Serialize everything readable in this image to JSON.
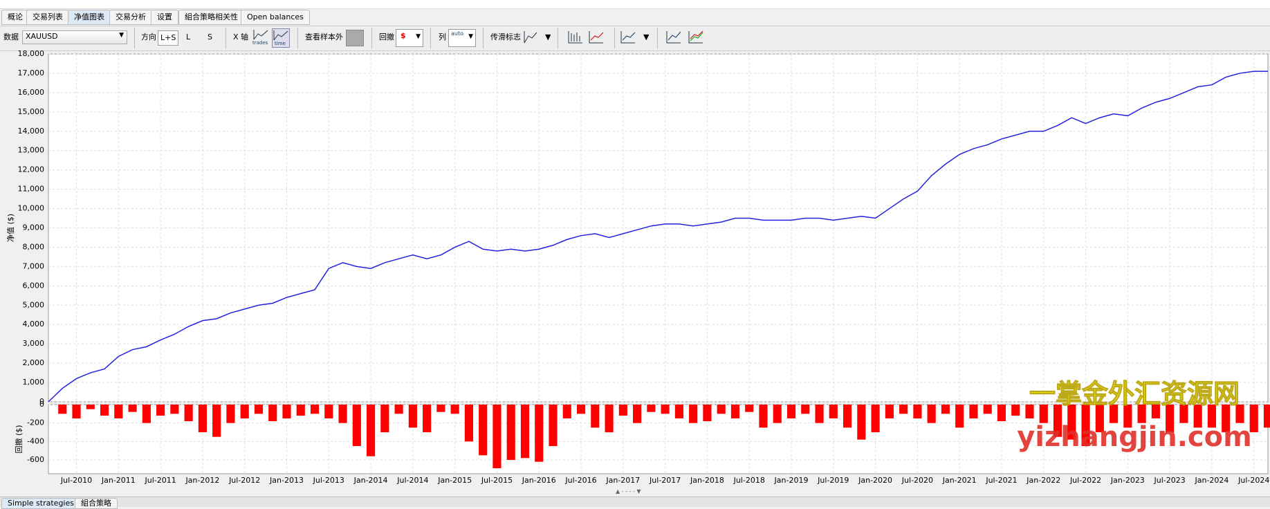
{
  "tabs": [
    "概论",
    "交易列表",
    "净值图表",
    "交易分析",
    "设置",
    "組合策略相关性",
    "Open balances"
  ],
  "toolbar": {
    "data_label": "数据",
    "symbol": "XAUUSD",
    "direction_label": "方向",
    "dir_ls": "L+S",
    "dir_l": "L",
    "dir_s": "S",
    "xaxis_label": "X 轴",
    "xaxis_trades": "trades",
    "xaxis_time": "time",
    "oos_label": "查看样本外",
    "drawdown_label": "回撤",
    "column_label": "列",
    "column_auto": "auto",
    "slip_label": "传滑标志"
  },
  "chart_data": {
    "type": "line",
    "x": [
      "Mar-2010",
      "May-2010",
      "Jul-2010",
      "Sep-2010",
      "Nov-2010",
      "Jan-2011",
      "Mar-2011",
      "May-2011",
      "Jul-2011",
      "Sep-2011",
      "Nov-2011",
      "Jan-2012",
      "Mar-2012",
      "May-2012",
      "Jul-2012",
      "Sep-2012",
      "Nov-2012",
      "Jan-2013",
      "Mar-2013",
      "May-2013",
      "Jul-2013",
      "Sep-2013",
      "Nov-2013",
      "Jan-2014",
      "Mar-2014",
      "May-2014",
      "Jul-2014",
      "Sep-2014",
      "Nov-2014",
      "Jan-2015",
      "Mar-2015",
      "May-2015",
      "Jul-2015",
      "Sep-2015",
      "Nov-2015",
      "Jan-2016",
      "Mar-2016",
      "May-2016",
      "Jul-2016",
      "Sep-2016",
      "Nov-2016",
      "Jan-2017",
      "Mar-2017",
      "May-2017",
      "Jul-2017",
      "Sep-2017",
      "Nov-2017",
      "Jan-2018",
      "Mar-2018",
      "May-2018",
      "Jul-2018",
      "Sep-2018",
      "Nov-2018",
      "Jan-2019",
      "Mar-2019",
      "May-2019",
      "Jul-2019",
      "Sep-2019",
      "Nov-2019",
      "Jan-2020",
      "Mar-2020",
      "May-2020",
      "Jul-2020",
      "Sep-2020",
      "Nov-2020",
      "Jan-2021",
      "Mar-2021",
      "May-2021",
      "Jul-2021",
      "Sep-2021",
      "Nov-2021",
      "Jan-2022",
      "Mar-2022",
      "May-2022",
      "Jul-2022",
      "Sep-2022",
      "Nov-2022",
      "Jan-2023",
      "Mar-2023",
      "May-2023",
      "Jul-2023",
      "Sep-2023",
      "Nov-2023",
      "Jan-2024",
      "Mar-2024",
      "May-2024",
      "Jul-2024",
      "Sep-2024"
    ],
    "series": [
      {
        "color": "#2222dd",
        "values": [
          0,
          700,
          1200,
          1500,
          1700,
          2350,
          2700,
          2850,
          3200,
          3500,
          3900,
          4200,
          4300,
          4600,
          4800,
          5000,
          5100,
          5400,
          5600,
          5800,
          6900,
          7200,
          7000,
          6900,
          7200,
          7400,
          7600,
          7400,
          7600,
          8000,
          8300,
          7900,
          7800,
          7900,
          7800,
          7900,
          8100,
          8400,
          8600,
          8700,
          8500,
          8700,
          8900,
          9100,
          9200,
          9200,
          9100,
          9200,
          9300,
          9500,
          9500,
          9400,
          9400,
          9400,
          9500,
          9500,
          9400,
          9500,
          9600,
          9500,
          10000,
          10500,
          10900,
          11700,
          12300,
          12800,
          13100,
          13300,
          13600,
          13800,
          14000,
          14000,
          14300,
          14700,
          14400,
          14700,
          14900,
          14800,
          15200,
          15500,
          15700,
          16000,
          16300,
          16400,
          16800,
          17000,
          17100,
          17100
        ]
      },
      {
        "type": "bar",
        "axis": "y2",
        "color": "#ff0000",
        "values": [
          0,
          -100,
          -150,
          -50,
          -120,
          -150,
          -80,
          -200,
          -120,
          -100,
          -180,
          -300,
          -350,
          -200,
          -150,
          -100,
          -180,
          -150,
          -120,
          -100,
          -150,
          -200,
          -450,
          -560,
          -300,
          -100,
          -250,
          -300,
          -80,
          -100,
          -400,
          -550,
          -690,
          -600,
          -580,
          -620,
          -450,
          -150,
          -100,
          -250,
          -300,
          -120,
          -200,
          -80,
          -100,
          -150,
          -200,
          -180,
          -100,
          -150,
          -80,
          -250,
          -200,
          -150,
          -100,
          -200,
          -150,
          -250,
          -380,
          -300,
          -150,
          -100,
          -150,
          -200,
          -100,
          -250,
          -150,
          -100,
          -180,
          -120,
          -150,
          -200,
          -350,
          -380,
          -450,
          -300,
          -200,
          -250,
          -200,
          -150,
          -300,
          -200,
          -250,
          -250,
          -300,
          -200,
          -300,
          -250
        ]
      }
    ],
    "ylabel": "净值 ($)",
    "y2label": "回撤 ($)",
    "ylim": [
      0,
      18000
    ],
    "yticks": [
      0,
      {
        "value": 1000,
        "label": "1,000"
      },
      {
        "value": 2000,
        "label": "2,000"
      },
      {
        "value": 3000,
        "label": "3,000"
      },
      {
        "value": 4000,
        "label": "4,000"
      },
      {
        "value": 5000,
        "label": "5,000"
      },
      {
        "value": 6000,
        "label": "6,000"
      },
      {
        "value": 7000,
        "label": "7,000"
      },
      {
        "value": 8000,
        "label": "8,000"
      },
      {
        "value": 9000,
        "label": "9,000"
      },
      {
        "value": 10000,
        "label": "10,000"
      },
      {
        "value": 11000,
        "label": "11,000"
      },
      {
        "value": 12000,
        "label": "12,000"
      },
      {
        "value": 13000,
        "label": "13,000"
      },
      {
        "value": 14000,
        "label": "14,000"
      },
      {
        "value": 15000,
        "label": "15,000"
      },
      {
        "value": 16000,
        "label": "16,000"
      },
      {
        "value": 17000,
        "label": "17,000"
      },
      {
        "value": 18000,
        "label": "18,000"
      }
    ],
    "y2lim": [
      -750,
      0
    ],
    "y2ticks": [
      -600,
      -400,
      -200,
      0
    ],
    "xticks": [
      "Jul-2010",
      "Jan-2011",
      "Jul-2011",
      "Jan-2012",
      "Jul-2012",
      "Jan-2013",
      "Jul-2013",
      "Jan-2014",
      "Jul-2014",
      "Jan-2015",
      "Jul-2015",
      "Jan-2016",
      "Jul-2016",
      "Jan-2017",
      "Jul-2017",
      "Jan-2018",
      "Jul-2018",
      "Jan-2019",
      "Jul-2019",
      "Jan-2020",
      "Jul-2020",
      "Jan-2021",
      "Jul-2021",
      "Jan-2022",
      "Jul-2022",
      "Jan-2023",
      "Jul-2023",
      "Jan-2024",
      "Jul-2024"
    ],
    "grid": true
  },
  "watermark": {
    "cn": "一掌金外汇资源网",
    "url": "yizhangjin.com"
  },
  "bottom_tabs": [
    "Simple strategies",
    "組合策略"
  ]
}
